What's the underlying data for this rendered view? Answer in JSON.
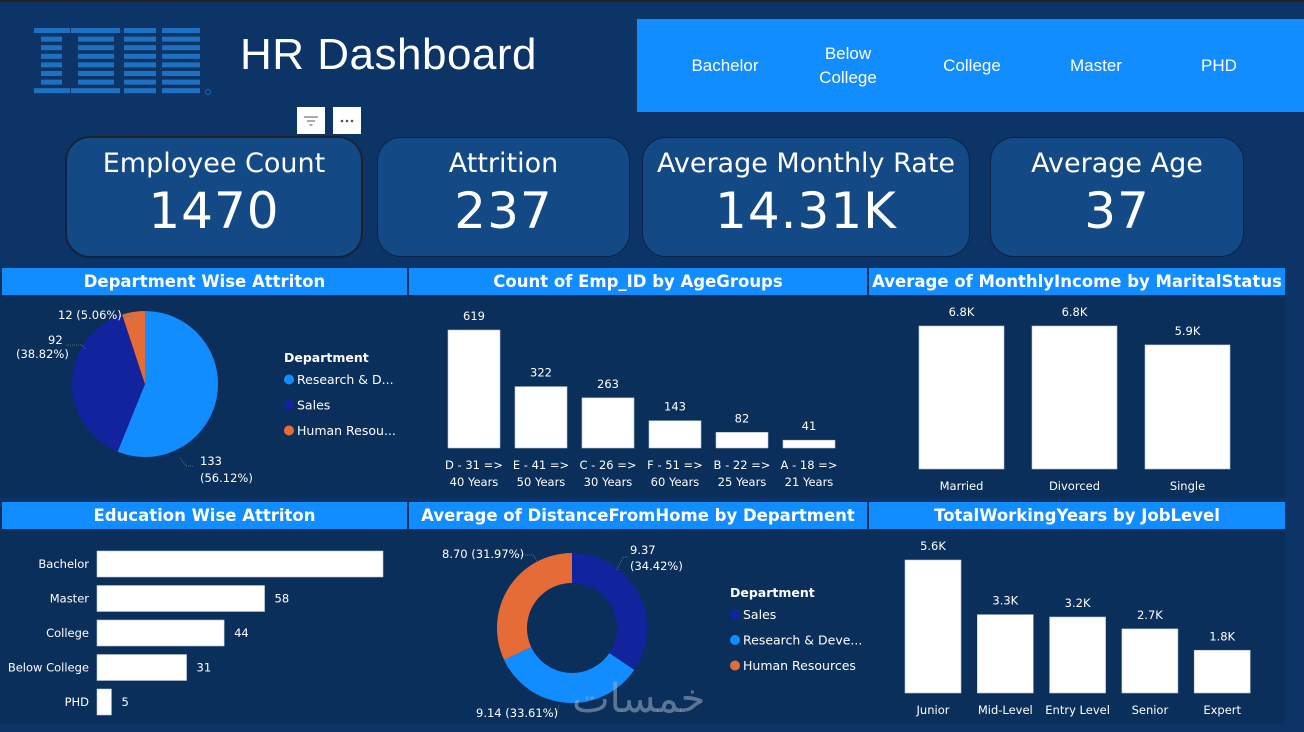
{
  "header": {
    "logo_text": "IBM",
    "title": "HR Dashboard"
  },
  "slicer": {
    "field": "Education",
    "options": [
      "Bachelor",
      "Below College",
      "College",
      "Master",
      "PHD"
    ]
  },
  "visual_header": {
    "filter_icon": "filter-icon",
    "more_icon": "more-options-icon"
  },
  "kpis": [
    {
      "label": "Employee Count",
      "value": "1470"
    },
    {
      "label": "Attrition",
      "value": "237"
    },
    {
      "label": "Average Monthly Rate",
      "value": "14.31K"
    },
    {
      "label": "Average Age",
      "value": "37"
    }
  ],
  "colors": {
    "background": "#0d3466",
    "panel": "#0b2f5b",
    "title_bar": "#118dff",
    "kpi_card": "#134a86",
    "research": "#118dff",
    "sales": "#12239e",
    "hr": "#e66c37",
    "bar": "#ffffff"
  },
  "watermark": "خمسات",
  "chart_data": [
    {
      "id": "department_attrition",
      "type": "pie",
      "title": "Department Wise Attriton",
      "legend_title": "Department",
      "legend_position": "right",
      "slices": [
        {
          "name": "Research & Development",
          "legend_label": "Research & D...",
          "value": 133,
          "percent": "56.12%",
          "label": "133 (56.12%)",
          "color": "#118dff"
        },
        {
          "name": "Sales",
          "legend_label": "Sales",
          "value": 92,
          "percent": "38.82%",
          "label": "92 (38.82%)",
          "color": "#12239e"
        },
        {
          "name": "Human Resources",
          "legend_label": "Human Resou...",
          "value": 12,
          "percent": "5.06%",
          "label": "12 (5.06%)",
          "color": "#e66c37"
        }
      ]
    },
    {
      "id": "age_groups",
      "type": "bar",
      "title": "Count of Emp_ID by AgeGroups",
      "categories": [
        "D - 31 => 40 Years",
        "E - 41 => 50 Years",
        "C - 26 => 30 Years",
        "F - 51 => 60 Years",
        "B - 22 => 25 Years",
        "A - 18 => 21 Years"
      ],
      "category_lines": [
        [
          "D - 31 =>",
          "40 Years"
        ],
        [
          "E - 41 =>",
          "50 Years"
        ],
        [
          "C - 26 =>",
          "30 Years"
        ],
        [
          "F - 51 =>",
          "60 Years"
        ],
        [
          "B - 22 =>",
          "25 Years"
        ],
        [
          "A - 18 =>",
          "21 Years"
        ]
      ],
      "values": [
        619,
        322,
        263,
        143,
        82,
        41
      ],
      "data_labels": [
        "619",
        "322",
        "263",
        "143",
        "82",
        "41"
      ],
      "xlabel": "",
      "ylabel": "",
      "ylim": [
        0,
        619
      ]
    },
    {
      "id": "income_marital",
      "type": "bar",
      "title": "Average of MonthlyIncome by MaritalStatus",
      "categories": [
        "Married",
        "Divorced",
        "Single"
      ],
      "values": [
        6800,
        6800,
        5900
      ],
      "data_labels": [
        "6.8K",
        "6.8K",
        "5.9K"
      ],
      "xlabel": "",
      "ylabel": "",
      "ylim": [
        0,
        6800
      ]
    },
    {
      "id": "education_attrition",
      "type": "bar",
      "orientation": "horizontal",
      "title": "Education Wise Attriton",
      "categories": [
        "Bachelor",
        "Master",
        "College",
        "Below College",
        "PHD"
      ],
      "values": [
        99,
        58,
        44,
        31,
        5
      ],
      "data_labels": [
        "",
        "58",
        "44",
        "31",
        "5"
      ],
      "xlabel": "",
      "ylabel": "",
      "xlim": [
        0,
        99
      ]
    },
    {
      "id": "distance_department",
      "type": "pie",
      "variant": "donut",
      "title": "Average of DistanceFromHome by Department",
      "legend_title": "Department",
      "legend_position": "right",
      "slices": [
        {
          "name": "Sales",
          "legend_label": "Sales",
          "value": 9.37,
          "percent": "34.42%",
          "label_lines": [
            "9.37",
            "(34.42%)"
          ],
          "color": "#12239e"
        },
        {
          "name": "Research & Development",
          "legend_label": "Research & Deve...",
          "value": 9.14,
          "percent": "33.61%",
          "label_lines": [
            "9.14 (33.61%)"
          ],
          "color": "#118dff"
        },
        {
          "name": "Human Resources",
          "legend_label": "Human Resources",
          "value": 8.7,
          "percent": "31.97%",
          "label_lines": [
            "8.70 (31.97%)"
          ],
          "color": "#e66c37"
        }
      ]
    },
    {
      "id": "working_years_joblevel",
      "type": "bar",
      "title": "TotalWorkingYears by JobLevel",
      "categories": [
        "Junior",
        "Mid-Level",
        "Entry Level",
        "Senior",
        "Expert"
      ],
      "values": [
        5600,
        3300,
        3200,
        2700,
        1800
      ],
      "data_labels": [
        "5.6K",
        "3.3K",
        "3.2K",
        "2.7K",
        "1.8K"
      ],
      "xlabel": "",
      "ylabel": "",
      "ylim": [
        0,
        5600
      ]
    }
  ]
}
